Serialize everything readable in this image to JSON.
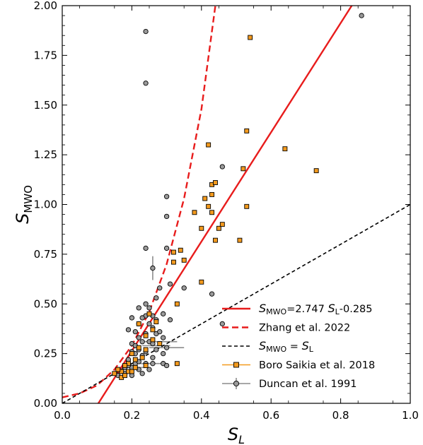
{
  "chart_data": {
    "type": "scatter",
    "xlim": [
      0.0,
      1.0
    ],
    "ylim": [
      0.0,
      2.0
    ],
    "xticks": [
      "0.0",
      "0.2",
      "0.4",
      "0.6",
      "0.8",
      "1.0"
    ],
    "yticks": [
      "0.00",
      "0.25",
      "0.50",
      "0.75",
      "1.00",
      "1.25",
      "1.50",
      "1.75",
      "2.00"
    ],
    "xlabel": {
      "main": "S",
      "sub": "L"
    },
    "ylabel": {
      "main": "S",
      "sub": "MWO"
    },
    "grid": false,
    "legend_position": "lower-right",
    "lines": [
      {
        "name": "S_MWO=2.747 S_L-0.285",
        "style": "solid",
        "color": "#e81c1c",
        "slope": 2.747,
        "intercept": -0.285
      },
      {
        "name": "Zhang et al. 2022",
        "style": "dashed",
        "color": "#e81c1c",
        "x": [
          0.0,
          0.05,
          0.1,
          0.15,
          0.2,
          0.25,
          0.3,
          0.35,
          0.4,
          0.44
        ],
        "y": [
          0.03,
          0.05,
          0.09,
          0.17,
          0.29,
          0.46,
          0.7,
          1.03,
          1.48,
          2.0
        ]
      },
      {
        "name": "S_MWO = S_L",
        "style": "dashed",
        "color": "#000000",
        "slope": 1.0,
        "intercept": 0.0
      }
    ],
    "legend": [
      {
        "kind": "solid",
        "main": "S",
        "sub": "MWO",
        "rest_a": "=2.747 ",
        "main2": "S",
        "sub2": "L",
        "rest_b": "-0.285"
      },
      {
        "kind": "dashed-red",
        "text": "Zhang et al. 2022"
      },
      {
        "kind": "dashed-black",
        "main": "S",
        "sub": "MWO",
        "rest_a": " = ",
        "main2": "S",
        "sub2": "L",
        "rest_b": ""
      },
      {
        "kind": "square-orange",
        "text": "Boro Saikia et al. 2018"
      },
      {
        "kind": "circle-gray",
        "text": "Duncan et al. 1991"
      }
    ],
    "series": [
      {
        "name": "Boro Saikia et al. 2018",
        "marker": "square",
        "color": "#f39a1e",
        "points": [
          [
            0.54,
            1.84
          ],
          [
            0.53,
            1.37
          ],
          [
            0.64,
            1.28
          ],
          [
            0.73,
            1.17
          ],
          [
            0.42,
            1.3
          ],
          [
            0.52,
            1.18
          ],
          [
            0.53,
            0.99
          ],
          [
            0.43,
            1.1
          ],
          [
            0.44,
            1.11
          ],
          [
            0.41,
            1.03
          ],
          [
            0.43,
            1.05
          ],
          [
            0.42,
            0.99
          ],
          [
            0.43,
            0.96
          ],
          [
            0.38,
            0.96
          ],
          [
            0.45,
            0.88
          ],
          [
            0.46,
            0.9
          ],
          [
            0.4,
            0.88
          ],
          [
            0.51,
            0.82
          ],
          [
            0.44,
            0.82
          ],
          [
            0.34,
            0.77
          ],
          [
            0.32,
            0.76
          ],
          [
            0.35,
            0.72
          ],
          [
            0.32,
            0.71
          ],
          [
            0.4,
            0.61
          ],
          [
            0.33,
            0.5
          ],
          [
            0.27,
            0.41
          ],
          [
            0.25,
            0.45
          ],
          [
            0.22,
            0.4
          ],
          [
            0.26,
            0.37
          ],
          [
            0.24,
            0.34
          ],
          [
            0.26,
            0.32
          ],
          [
            0.22,
            0.28
          ],
          [
            0.24,
            0.27
          ],
          [
            0.2,
            0.25
          ],
          [
            0.28,
            0.3
          ],
          [
            0.21,
            0.22
          ],
          [
            0.19,
            0.2
          ],
          [
            0.18,
            0.19
          ],
          [
            0.17,
            0.16
          ],
          [
            0.16,
            0.17
          ],
          [
            0.15,
            0.15
          ],
          [
            0.19,
            0.16
          ],
          [
            0.17,
            0.13
          ],
          [
            0.33,
            0.2
          ],
          [
            0.2,
            0.16
          ],
          [
            0.18,
            0.14
          ],
          [
            0.21,
            0.18
          ],
          [
            0.23,
            0.23
          ],
          [
            0.24,
            0.19
          ]
        ]
      },
      {
        "name": "Duncan et al. 1991",
        "marker": "circle",
        "color": "#9a9a9a",
        "points": [
          [
            0.24,
            1.87
          ],
          [
            0.24,
            1.61
          ],
          [
            0.86,
            1.95
          ],
          [
            0.46,
            1.19
          ],
          [
            0.3,
            1.04
          ],
          [
            0.3,
            0.94
          ],
          [
            0.3,
            0.78
          ],
          [
            0.24,
            0.78
          ],
          [
            0.26,
            0.68
          ],
          [
            0.28,
            0.58
          ],
          [
            0.31,
            0.6
          ],
          [
            0.35,
            0.58
          ],
          [
            0.43,
            0.55
          ],
          [
            0.27,
            0.53
          ],
          [
            0.24,
            0.5
          ],
          [
            0.25,
            0.48
          ],
          [
            0.22,
            0.48
          ],
          [
            0.29,
            0.45
          ],
          [
            0.24,
            0.44
          ],
          [
            0.23,
            0.43
          ],
          [
            0.2,
            0.43
          ],
          [
            0.22,
            0.4
          ],
          [
            0.25,
            0.4
          ],
          [
            0.27,
            0.42
          ],
          [
            0.26,
            0.38
          ],
          [
            0.19,
            0.37
          ],
          [
            0.21,
            0.36
          ],
          [
            0.24,
            0.35
          ],
          [
            0.27,
            0.35
          ],
          [
            0.29,
            0.33
          ],
          [
            0.22,
            0.33
          ],
          [
            0.25,
            0.31
          ],
          [
            0.26,
            0.3
          ],
          [
            0.3,
            0.28
          ],
          [
            0.2,
            0.3
          ],
          [
            0.22,
            0.27
          ],
          [
            0.27,
            0.27
          ],
          [
            0.24,
            0.26
          ],
          [
            0.29,
            0.25
          ],
          [
            0.21,
            0.25
          ],
          [
            0.23,
            0.24
          ],
          [
            0.26,
            0.23
          ],
          [
            0.19,
            0.22
          ],
          [
            0.21,
            0.2
          ],
          [
            0.24,
            0.2
          ],
          [
            0.26,
            0.2
          ],
          [
            0.29,
            0.2
          ],
          [
            0.3,
            0.19
          ],
          [
            0.2,
            0.18
          ],
          [
            0.22,
            0.17
          ],
          [
            0.18,
            0.15
          ],
          [
            0.16,
            0.14
          ],
          [
            0.2,
            0.14
          ],
          [
            0.23,
            0.15
          ],
          [
            0.17,
            0.16
          ],
          [
            0.46,
            0.4
          ],
          [
            0.31,
            0.42
          ],
          [
            0.28,
            0.36
          ],
          [
            0.26,
            0.44
          ],
          [
            0.23,
            0.31
          ],
          [
            0.2,
            0.26
          ],
          [
            0.21,
            0.29
          ],
          [
            0.25,
            0.17
          ],
          [
            0.19,
            0.19
          ],
          [
            0.18,
            0.18
          ],
          [
            0.22,
            0.21
          ]
        ]
      }
    ],
    "errorbars": [
      {
        "x": 0.26,
        "y": 0.68,
        "xerr": 0.0,
        "yerr": 0.06
      },
      {
        "x": 0.24,
        "y": 0.2,
        "xerr": 0.06,
        "yerr": 0.0
      },
      {
        "x": 0.27,
        "y": 0.29,
        "xerr": 0.04,
        "yerr": 0.0
      },
      {
        "x": 0.28,
        "y": 0.31,
        "xerr": 0.05,
        "yerr": 0.0
      },
      {
        "x": 0.3,
        "y": 0.28,
        "xerr": 0.05,
        "yerr": 0.0
      },
      {
        "x": 0.2,
        "y": 0.18,
        "xerr": 0.04,
        "yerr": 0.0
      }
    ]
  }
}
